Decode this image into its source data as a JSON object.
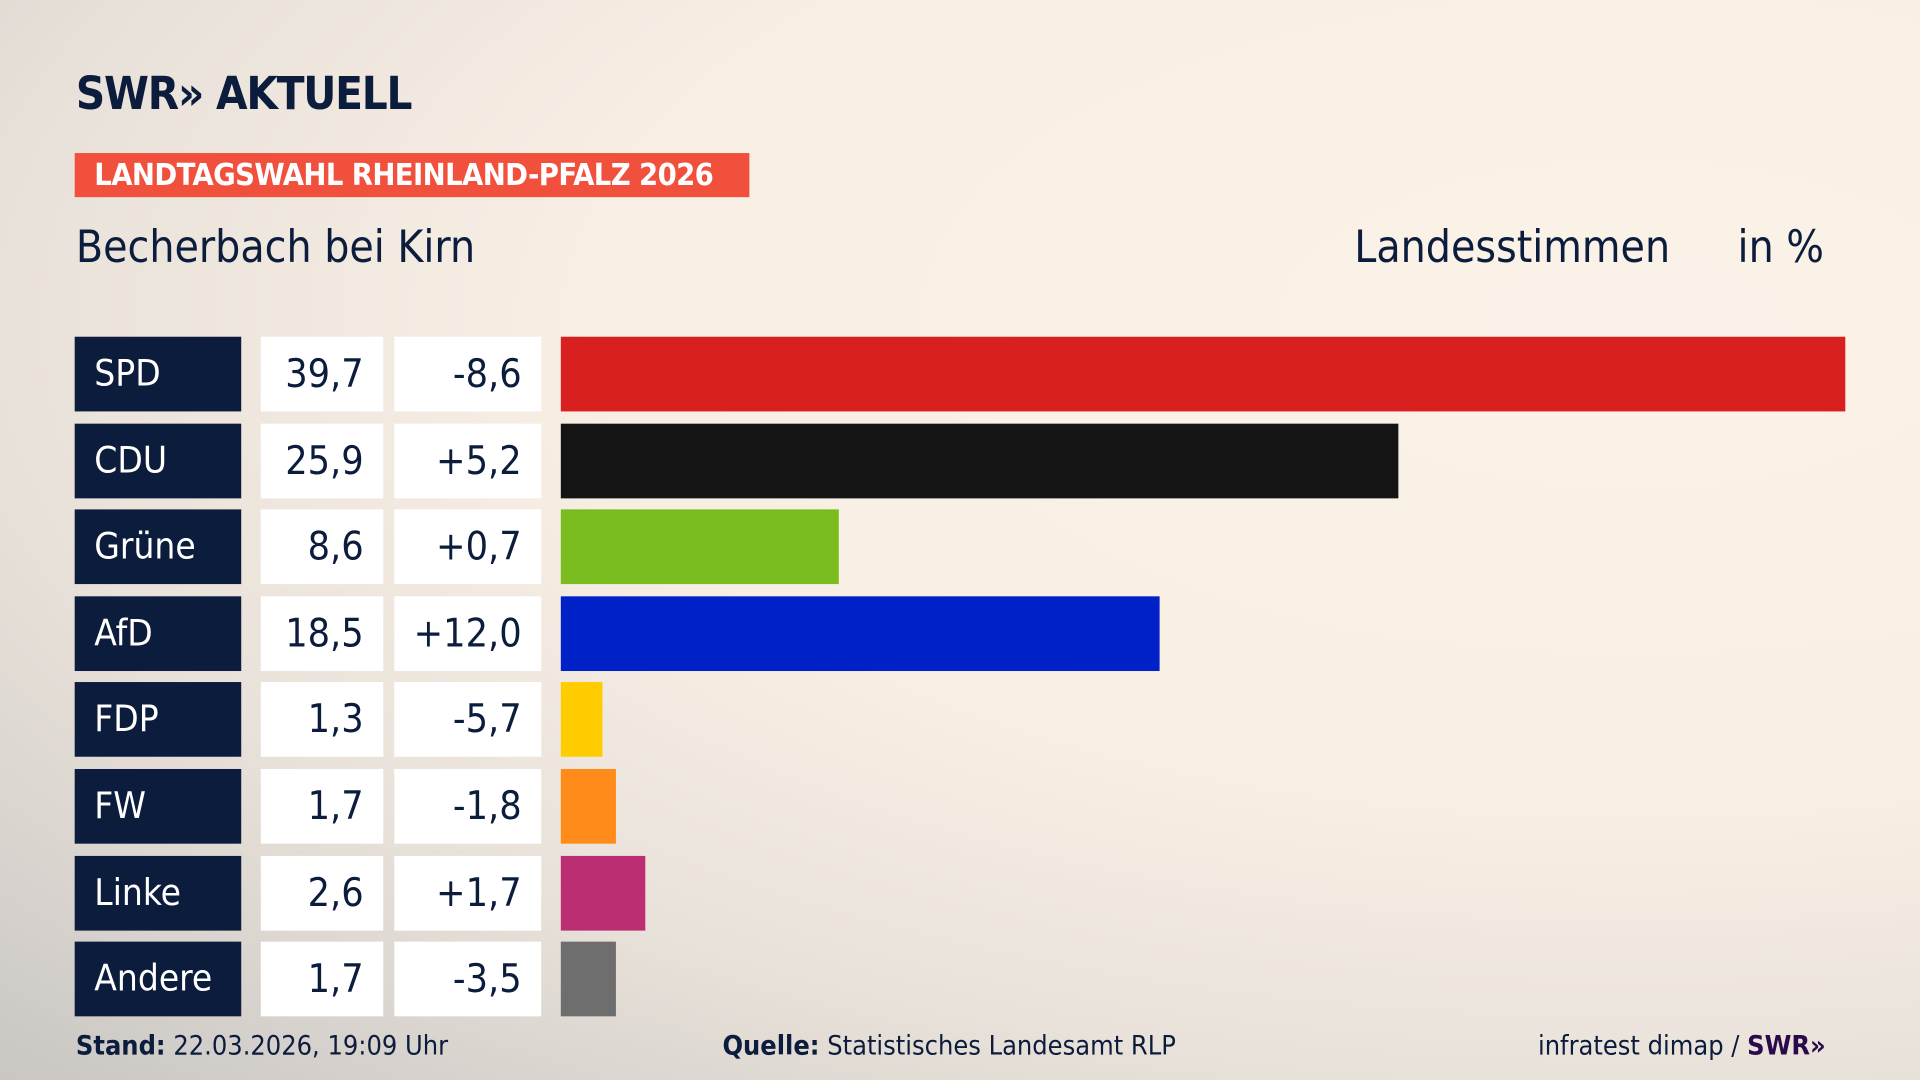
{
  "brand": "SWR» AKTUELL",
  "badge": "LANDTAGSWAHL RHEINLAND-PFALZ 2026",
  "place": "Becherbach bei Kirn",
  "mode": "Landesstimmen",
  "unit": "in %",
  "footer": {
    "stand_label": "Stand:",
    "stand": "22.03.2026, 19:09 Uhr",
    "source_label": "Quelle:",
    "source": "Statistisches Landesamt RLP",
    "credit": "infratest dimap / ",
    "credit_logo": "SWR»"
  },
  "chart_data": {
    "type": "bar",
    "orientation": "horizontal",
    "categories": [
      "SPD",
      "CDU",
      "Grüne",
      "AfD",
      "FDP",
      "FW",
      "Linke",
      "Andere"
    ],
    "values": [
      39.7,
      25.9,
      8.6,
      18.5,
      1.3,
      1.7,
      2.6,
      1.7
    ],
    "value_labels": [
      "39,7",
      "25,9",
      "8,6",
      "18,5",
      "1,3",
      "1,7",
      "2,6",
      "1,7"
    ],
    "diff_labels": [
      "-8,6",
      "+5,2",
      "+0,7",
      "+12,0",
      "-5,7",
      "-1,8",
      "+1,7",
      "-3,5"
    ],
    "diffs": [
      -8.6,
      5.2,
      0.7,
      12.0,
      -5.7,
      -1.8,
      1.7,
      -3.5
    ],
    "colors": [
      "#d82020",
      "#141414",
      "#78bc1e",
      "#0020c8",
      "#ffcc00",
      "#ff8c1a",
      "#bb2e72",
      "#6e6e6e"
    ],
    "xlim": [
      0,
      39.7
    ]
  }
}
